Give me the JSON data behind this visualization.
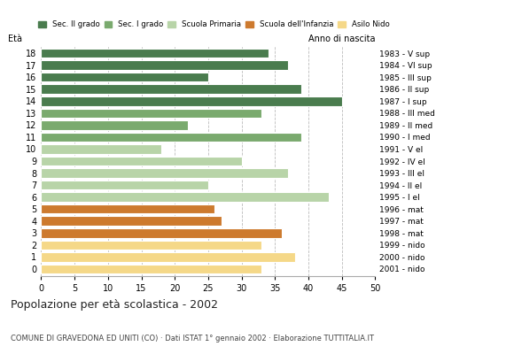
{
  "ages": [
    18,
    17,
    16,
    15,
    14,
    13,
    12,
    11,
    10,
    9,
    8,
    7,
    6,
    5,
    4,
    3,
    2,
    1,
    0
  ],
  "values": [
    34,
    37,
    25,
    39,
    45,
    33,
    22,
    39,
    18,
    30,
    37,
    25,
    43,
    26,
    27,
    36,
    33,
    38,
    33
  ],
  "categories": [
    "Sec. II grado",
    "Sec. I grado",
    "Scuola Primaria",
    "Scuola dell'Infanzia",
    "Asilo Nido"
  ],
  "colors": [
    "#4a7c4e",
    "#7aaa6e",
    "#b8d4a8",
    "#cd7a2e",
    "#f5d888"
  ],
  "age_school_type": {
    "18": "Sec. II grado",
    "17": "Sec. II grado",
    "16": "Sec. II grado",
    "15": "Sec. II grado",
    "14": "Sec. II grado",
    "13": "Sec. I grado",
    "12": "Sec. I grado",
    "11": "Sec. I grado",
    "10": "Scuola Primaria",
    "9": "Scuola Primaria",
    "8": "Scuola Primaria",
    "7": "Scuola Primaria",
    "6": "Scuola Primaria",
    "5": "Scuola dell'Infanzia",
    "4": "Scuola dell'Infanzia",
    "3": "Scuola dell'Infanzia",
    "2": "Asilo Nido",
    "1": "Asilo Nido",
    "0": "Asilo Nido"
  },
  "right_labels": {
    "18": "1983 - V sup",
    "17": "1984 - VI sup",
    "16": "1985 - III sup",
    "15": "1986 - II sup",
    "14": "1987 - I sup",
    "13": "1988 - III med",
    "12": "1989 - II med",
    "11": "1990 - I med",
    "10": "1991 - V el",
    "9": "1992 - IV el",
    "8": "1993 - III el",
    "7": "1994 - II el",
    "6": "1995 - I el",
    "5": "1996 - mat",
    "4": "1997 - mat",
    "3": "1998 - mat",
    "2": "1999 - nido",
    "1": "2000 - nido",
    "0": "2001 - nido"
  },
  "xlim": [
    0,
    50
  ],
  "xticks": [
    0,
    5,
    10,
    15,
    20,
    25,
    30,
    35,
    40,
    45,
    50
  ],
  "title": "Popolazione per età scolastica - 2002",
  "subtitle": "COMUNE DI GRAVEDONA ED UNITI (CO) · Dati ISTAT 1° gennaio 2002 · Elaborazione TUTTITALIA.IT",
  "ylabel_left": "Età",
  "ylabel_right": "Anno di nascita",
  "bar_height": 0.78,
  "background_color": "#ffffff",
  "grid_color": "#bbbbbb"
}
